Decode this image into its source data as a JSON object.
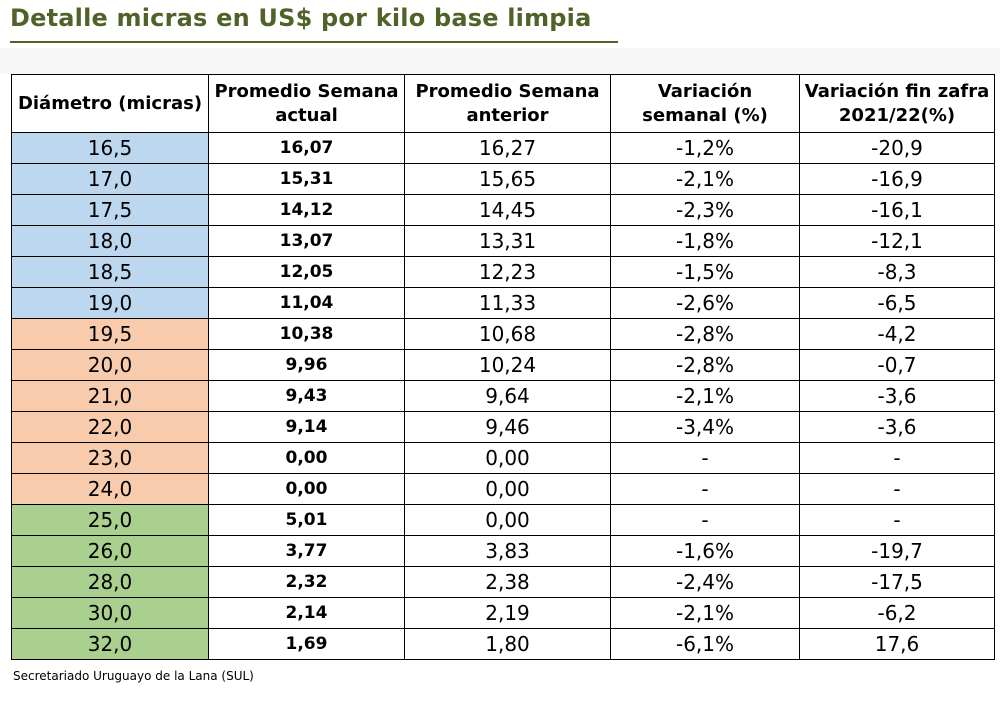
{
  "title": "Detalle micras en US$ por kilo base limpia",
  "headers": {
    "diametro": "Diámetro (micras)",
    "actual_l1": "Promedio Semana",
    "actual_l2": "actual",
    "anterior_l1": "Promedio Semana",
    "anterior_l2": "anterior",
    "var_sem_l1": "Variación",
    "var_sem_l2": "semanal (%)",
    "var_zafra_l1": "Variación fin zafra",
    "var_zafra_l2": "2021/22(%)"
  },
  "colors": {
    "title": "#4f6228",
    "blue": "#bdd7ee",
    "orange": "#f8cbad",
    "green": "#a9d08e"
  },
  "rows": [
    {
      "dia": "16,5",
      "act": "16,07",
      "ant": "16,27",
      "var_sem": "-1,2%",
      "var_zafra": "-20,9",
      "color": "blue"
    },
    {
      "dia": "17,0",
      "act": "15,31",
      "ant": "15,65",
      "var_sem": "-2,1%",
      "var_zafra": "-16,9",
      "color": "blue"
    },
    {
      "dia": "17,5",
      "act": "14,12",
      "ant": "14,45",
      "var_sem": "-2,3%",
      "var_zafra": "-16,1",
      "color": "blue"
    },
    {
      "dia": "18,0",
      "act": "13,07",
      "ant": "13,31",
      "var_sem": "-1,8%",
      "var_zafra": "-12,1",
      "color": "blue"
    },
    {
      "dia": "18,5",
      "act": "12,05",
      "ant": "12,23",
      "var_sem": "-1,5%",
      "var_zafra": "-8,3",
      "color": "blue"
    },
    {
      "dia": "19,0",
      "act": "11,04",
      "ant": "11,33",
      "var_sem": "-2,6%",
      "var_zafra": "-6,5",
      "color": "blue"
    },
    {
      "dia": "19,5",
      "act": "10,38",
      "ant": "10,68",
      "var_sem": "-2,8%",
      "var_zafra": "-4,2",
      "color": "orange"
    },
    {
      "dia": "20,0",
      "act": "9,96",
      "ant": "10,24",
      "var_sem": "-2,8%",
      "var_zafra": "-0,7",
      "color": "orange"
    },
    {
      "dia": "21,0",
      "act": "9,43",
      "ant": "9,64",
      "var_sem": "-2,1%",
      "var_zafra": "-3,6",
      "color": "orange"
    },
    {
      "dia": "22,0",
      "act": "9,14",
      "ant": "9,46",
      "var_sem": "-3,4%",
      "var_zafra": "-3,6",
      "color": "orange"
    },
    {
      "dia": "23,0",
      "act": "0,00",
      "ant": "0,00",
      "var_sem": "-",
      "var_zafra": "-",
      "color": "orange"
    },
    {
      "dia": "24,0",
      "act": "0,00",
      "ant": "0,00",
      "var_sem": "-",
      "var_zafra": "-",
      "color": "orange"
    },
    {
      "dia": "25,0",
      "act": "5,01",
      "ant": "0,00",
      "var_sem": "-",
      "var_zafra": "-",
      "color": "green"
    },
    {
      "dia": "26,0",
      "act": "3,77",
      "ant": "3,83",
      "var_sem": "-1,6%",
      "var_zafra": "-19,7",
      "color": "green"
    },
    {
      "dia": "28,0",
      "act": "2,32",
      "ant": "2,38",
      "var_sem": "-2,4%",
      "var_zafra": "-17,5",
      "color": "green"
    },
    {
      "dia": "30,0",
      "act": "2,14",
      "ant": "2,19",
      "var_sem": "-2,1%",
      "var_zafra": "-6,2",
      "color": "green"
    },
    {
      "dia": "32,0",
      "act": "1,69",
      "ant": "1,80",
      "var_sem": "-6,1%",
      "var_zafra": "17,6",
      "color": "green"
    }
  ],
  "source": "Secretariado Uruguayo de la Lana (SUL)"
}
